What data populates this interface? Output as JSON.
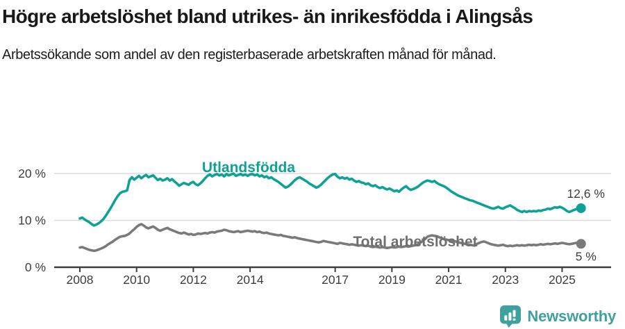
{
  "header": {
    "title": "Högre arbetslöshet bland utrikes- än inrikesfödda i Alingsås",
    "subtitle": "Arbetssökande som andel av den registerbaserade arbetskraften månad för månad."
  },
  "colors": {
    "accent_teal": "#0ea296",
    "series_gray": "#7a7a7a",
    "label_gray": "#6f6f6f",
    "logo_teal": "#3fa09e",
    "axis_text": "#3d3d3d",
    "axis_line": "#3d3d3d",
    "gridline": "#dcdcdc"
  },
  "chart_data": {
    "type": "line",
    "title": "Högre arbetslöshet bland utrikes- än inrikesfödda i Alingsås",
    "subtitle": "Arbetssökande som andel av den registerbaserade arbetskraften månad för månad.",
    "xlabel": "",
    "ylabel": "",
    "unit": "%",
    "frequency": "monthly",
    "x_start": "2008-01",
    "x_end": "2025-09",
    "xlim": [
      2007.1,
      2026.73
    ],
    "ylim": [
      0,
      21.5
    ],
    "grid": "horizontal",
    "legend": "inline-labels",
    "yticks": [
      {
        "value": 0,
        "label": "0 %"
      },
      {
        "value": 10,
        "label": "10 %"
      },
      {
        "value": 20,
        "label": "20 %"
      }
    ],
    "xticks": [
      {
        "value": 2008,
        "label": "2008"
      },
      {
        "value": 2010,
        "label": "2010"
      },
      {
        "value": 2012,
        "label": "2012"
      },
      {
        "value": 2014,
        "label": "2014"
      },
      {
        "value": 2017,
        "label": "2017"
      },
      {
        "value": 2019,
        "label": "2019"
      },
      {
        "value": 2021,
        "label": "2021"
      },
      {
        "value": 2023,
        "label": "2023"
      },
      {
        "value": 2025,
        "label": "2025"
      }
    ],
    "series": [
      {
        "name": "Utlandsfödda",
        "color_key": "accent_teal",
        "end_label": "12,6 %",
        "end_value": 12.6,
        "values": [
          10.4,
          10.6,
          10.2,
          9.9,
          9.6,
          9.2,
          8.9,
          9.1,
          9.4,
          9.8,
          10.3,
          11.0,
          11.8,
          12.6,
          13.5,
          14.4,
          15.2,
          15.8,
          16.1,
          16.2,
          16.4,
          18.6,
          19.2,
          18.7,
          19.1,
          19.5,
          19.0,
          19.4,
          19.7,
          19.2,
          19.4,
          19.6,
          19.1,
          18.6,
          18.9,
          18.5,
          18.7,
          19.0,
          18.5,
          18.8,
          18.3,
          17.9,
          17.4,
          17.7,
          18.0,
          17.8,
          17.6,
          18.0,
          18.2,
          17.7,
          17.5,
          17.9,
          18.4,
          19.0,
          19.5,
          19.8,
          19.4,
          19.7,
          19.9,
          19.6,
          19.8,
          19.4,
          19.9,
          19.6,
          19.8,
          20.0,
          19.5,
          19.7,
          19.9,
          19.6,
          19.8,
          19.5,
          19.8,
          19.9,
          19.6,
          19.8,
          19.4,
          19.6,
          19.2,
          19.4,
          19.0,
          19.2,
          18.8,
          18.5,
          18.2,
          17.8,
          17.4,
          17.0,
          17.2,
          17.6,
          18.1,
          18.6,
          19.0,
          19.2,
          18.9,
          18.6,
          18.3,
          17.9,
          17.6,
          17.3,
          17.0,
          17.2,
          17.6,
          18.1,
          18.6,
          19.1,
          19.5,
          19.8,
          19.9,
          19.3,
          19.0,
          19.2,
          18.9,
          19.1,
          18.7,
          18.9,
          18.5,
          18.2,
          18.4,
          18.1,
          18.0,
          17.7,
          17.9,
          17.5,
          17.3,
          17.5,
          17.1,
          16.9,
          17.1,
          16.8,
          16.6,
          16.8,
          16.5,
          16.2,
          16.4,
          16.1,
          16.6,
          17.0,
          17.3,
          16.8,
          16.5,
          16.7,
          16.9,
          17.2,
          17.6,
          18.0,
          18.3,
          18.5,
          18.4,
          18.2,
          18.4,
          18.0,
          17.7,
          17.5,
          17.3,
          17.0,
          16.6,
          16.2,
          15.9,
          15.6,
          15.3,
          15.1,
          14.9,
          14.7,
          14.5,
          14.3,
          14.2,
          14.0,
          13.8,
          13.6,
          13.4,
          13.2,
          13.0,
          12.8,
          12.6,
          12.5,
          12.7,
          12.9,
          12.6,
          12.5,
          12.8,
          13.0,
          13.2,
          12.9,
          12.6,
          12.2,
          12.0,
          11.8,
          12.0,
          11.8,
          12.0,
          11.9,
          12.0,
          11.9,
          12.1,
          12.0,
          12.2,
          12.3,
          12.5,
          12.4,
          12.6,
          12.8,
          12.7,
          12.9,
          12.7,
          12.4,
          12.0,
          11.8,
          12.0,
          12.2,
          12.4,
          12.5,
          12.6
        ]
      },
      {
        "name": "Total arbetslöshet",
        "color_key": "series_gray",
        "end_label": "5 %",
        "end_value": 5.0,
        "values": [
          4.2,
          4.3,
          4.1,
          3.9,
          3.7,
          3.6,
          3.5,
          3.6,
          3.8,
          4.0,
          4.2,
          4.5,
          4.9,
          5.2,
          5.5,
          5.9,
          6.2,
          6.5,
          6.6,
          6.7,
          6.9,
          7.2,
          7.7,
          8.1,
          8.6,
          9.0,
          9.2,
          8.9,
          8.5,
          8.3,
          8.5,
          8.7,
          8.4,
          8.0,
          7.8,
          8.0,
          8.2,
          8.4,
          8.1,
          7.9,
          7.7,
          7.5,
          7.3,
          7.2,
          7.4,
          7.2,
          7.0,
          7.1,
          6.9,
          7.0,
          7.2,
          7.1,
          7.2,
          7.3,
          7.2,
          7.4,
          7.5,
          7.4,
          7.6,
          7.7,
          7.8,
          8.0,
          7.9,
          7.7,
          7.6,
          7.5,
          7.6,
          7.7,
          7.5,
          7.6,
          7.7,
          7.8,
          7.7,
          7.6,
          7.7,
          7.5,
          7.6,
          7.4,
          7.3,
          7.4,
          7.2,
          7.1,
          7.0,
          6.9,
          6.8,
          6.9,
          6.7,
          6.6,
          6.5,
          6.4,
          6.3,
          6.4,
          6.2,
          6.1,
          6.0,
          5.9,
          5.8,
          5.7,
          5.6,
          5.5,
          5.4,
          5.3,
          5.4,
          5.6,
          5.5,
          5.4,
          5.3,
          5.2,
          5.1,
          5.0,
          5.2,
          5.1,
          5.0,
          4.9,
          4.8,
          4.9,
          4.8,
          4.7,
          4.6,
          4.7,
          4.6,
          4.5,
          4.6,
          4.4,
          4.3,
          4.4,
          4.3,
          4.2,
          4.3,
          4.2,
          4.1,
          4.2,
          4.3,
          4.2,
          4.3,
          4.4,
          4.3,
          4.4,
          4.5,
          4.4,
          4.5,
          4.6,
          4.7,
          4.9,
          5.2,
          5.6,
          6.0,
          6.5,
          6.7,
          6.8,
          6.7,
          6.6,
          6.4,
          6.2,
          6.0,
          5.9,
          5.8,
          5.7,
          5.6,
          5.5,
          5.3,
          5.2,
          5.1,
          5.0,
          4.9,
          4.8,
          4.7,
          4.6,
          5.0,
          5.2,
          5.4,
          5.5,
          5.3,
          5.1,
          4.9,
          4.8,
          4.7,
          4.6,
          4.7,
          4.8,
          4.6,
          4.5,
          4.6,
          4.5,
          4.6,
          4.7,
          4.6,
          4.7,
          4.6,
          4.7,
          4.8,
          4.7,
          4.8,
          4.7,
          4.8,
          4.9,
          4.8,
          4.9,
          5.0,
          4.9,
          5.0,
          5.1,
          5.0,
          5.1,
          5.2,
          5.1,
          5.0,
          4.9,
          5.0,
          5.1,
          5.2,
          5.1,
          5.0
        ]
      }
    ]
  },
  "footer": {
    "brand": "Newsworthy",
    "logo_icon": "bar-chart-speech-bubble-icon"
  }
}
